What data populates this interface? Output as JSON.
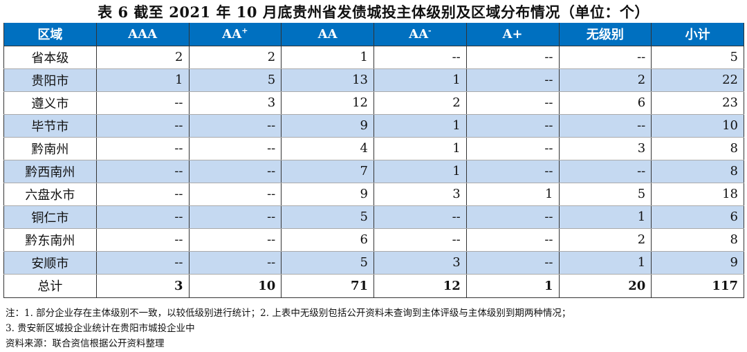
{
  "title": "表 6   截至 2021 年 10 月底贵州省发债城投主体级别及区域分布情况（单位：个）",
  "colors": {
    "header_bg": "#0070c0",
    "alt_row_bg": "#c5d9f1"
  },
  "table": {
    "headers": [
      {
        "text": "区域"
      },
      {
        "text": "AAA"
      },
      {
        "text": "AA",
        "sup": "+"
      },
      {
        "text": "AA"
      },
      {
        "text": "AA",
        "sup": "-"
      },
      {
        "text": "A+"
      },
      {
        "text": "无级别"
      },
      {
        "text": "小计"
      }
    ],
    "rows": [
      [
        "省本级",
        "2",
        "2",
        "1",
        "--",
        "--",
        "--",
        "5"
      ],
      [
        "贵阳市",
        "1",
        "5",
        "13",
        "1",
        "--",
        "2",
        "22"
      ],
      [
        "遵义市",
        "--",
        "3",
        "12",
        "2",
        "--",
        "6",
        "23"
      ],
      [
        "毕节市",
        "--",
        "--",
        "9",
        "1",
        "--",
        "--",
        "10"
      ],
      [
        "黔南州",
        "--",
        "--",
        "4",
        "1",
        "--",
        "3",
        "8"
      ],
      [
        "黔西南州",
        "--",
        "--",
        "7",
        "1",
        "--",
        "--",
        "8"
      ],
      [
        "六盘水市",
        "--",
        "--",
        "9",
        "3",
        "1",
        "5",
        "18"
      ],
      [
        "铜仁市",
        "--",
        "--",
        "5",
        "--",
        "--",
        "1",
        "6"
      ],
      [
        "黔东南州",
        "--",
        "--",
        "6",
        "--",
        "--",
        "2",
        "8"
      ],
      [
        "安顺市",
        "--",
        "--",
        "5",
        "3",
        "--",
        "1",
        "9"
      ]
    ],
    "total": [
      "总计",
      "3",
      "10",
      "71",
      "12",
      "1",
      "20",
      "117"
    ]
  },
  "notes": [
    "注：1. 部分企业存在主体级别不一致，以较低级别进行统计；2. 上表中无级别包括公开资料未查询到主体评级与主体级别到期两种情况；",
    "3. 贵安新区城投企业统计在贵阳市城投企业中",
    "资料来源：联合资信根据公开资料整理"
  ]
}
